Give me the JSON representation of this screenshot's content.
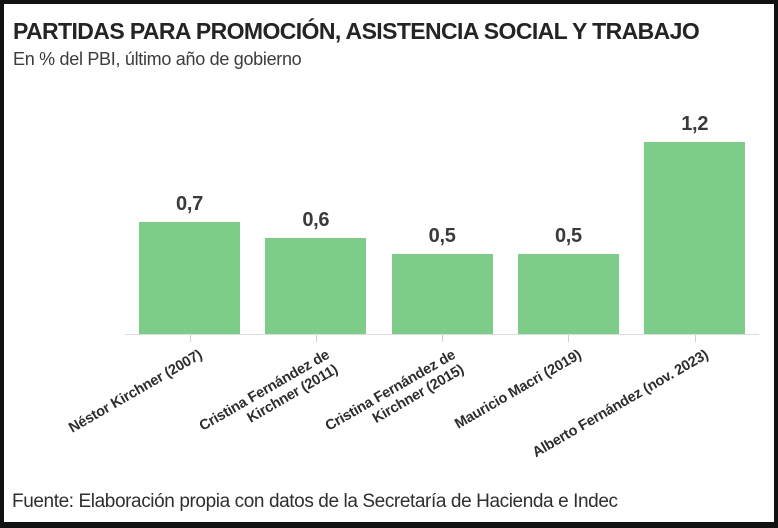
{
  "header": {
    "title": "PARTIDAS PARA PROMOCIÓN, ASISTENCIA SOCIAL Y TRABAJO",
    "subtitle": "En % del PBI, último año de gobierno"
  },
  "footer": {
    "source": "Fuente: Elaboración propia con datos de la Secretaría de Hacienda e Indec"
  },
  "colors": {
    "bar_green": "#7dcc8a",
    "axis_line": "#dcdcdc",
    "tick": "#cfcfcf",
    "title_text": "#242424",
    "value_label_text": "#3a3a3a",
    "frame_border": "#111111"
  },
  "chart_data": {
    "type": "bar",
    "title": "PARTIDAS PARA PROMOCIÓN, ASISTENCIA SOCIAL Y TRABAJO",
    "subtitle": "En % del PBI, último año de gobierno",
    "categories": [
      "Néstor Kirchner (2007)",
      "Cristina Fernández de Kirchner (2011)",
      "Cristina Fernández de Kirchner (2015)",
      "Mauricio Macri (2019)",
      "Alberto Fernández (nov. 2023)"
    ],
    "categories_display": [
      [
        "Néstor Kirchner (2007)"
      ],
      [
        "Cristina Fernández de",
        "Kirchner (2011)"
      ],
      [
        "Cristina Fernández de",
        "Kirchner (2015)"
      ],
      [
        "Mauricio Macri (2019)"
      ],
      [
        "Alberto Fernández (nov. 2023)"
      ]
    ],
    "values": [
      0.7,
      0.6,
      0.5,
      0.5,
      1.2
    ],
    "value_labels": [
      "0,7",
      "0,6",
      "0,5",
      "0,5",
      "1,2"
    ],
    "unit": "% del PBI",
    "xlabel": "",
    "ylabel": "",
    "ylim": [
      0,
      1.4
    ],
    "grid": false,
    "legend": false,
    "bar_color": "#7dcc8a",
    "x_tick_rotation_deg": 30,
    "source": "Fuente: Elaboración propia con datos de la Secretaría de Hacienda e Indec"
  }
}
